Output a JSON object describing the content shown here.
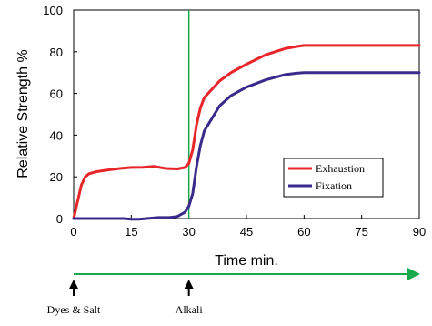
{
  "chart_data": {
    "type": "line",
    "xlabel": "Time min.",
    "ylabel": "Relative Strength %",
    "xlim": [
      0,
      90
    ],
    "ylim": [
      0,
      100
    ],
    "x_ticks": [
      0,
      15,
      30,
      45,
      60,
      75,
      90
    ],
    "y_ticks": [
      0,
      20,
      40,
      60,
      80,
      100
    ],
    "grid": false,
    "legend_position": "right-middle",
    "marker_line_x": 30,
    "series": [
      {
        "name": "Exhaustion",
        "color": "#e8262a",
        "points": [
          [
            0,
            0
          ],
          [
            1,
            8
          ],
          [
            2,
            16
          ],
          [
            3,
            20
          ],
          [
            4,
            21.5
          ],
          [
            6,
            22.5
          ],
          [
            9,
            23.3
          ],
          [
            12,
            24
          ],
          [
            15,
            24.5
          ],
          [
            18,
            24.6
          ],
          [
            21,
            25
          ],
          [
            24,
            24
          ],
          [
            27,
            23.8
          ],
          [
            29,
            24.5
          ],
          [
            30,
            26.5
          ],
          [
            31,
            33
          ],
          [
            32,
            45
          ],
          [
            33,
            53
          ],
          [
            34,
            58
          ],
          [
            36,
            62
          ],
          [
            38,
            66
          ],
          [
            41,
            70
          ],
          [
            45,
            74
          ],
          [
            50,
            78.5
          ],
          [
            55,
            81.5
          ],
          [
            58,
            82.5
          ],
          [
            60,
            83
          ],
          [
            75,
            83
          ],
          [
            90,
            83
          ]
        ]
      },
      {
        "name": "Fixation",
        "color": "#3a2a8c",
        "points": [
          [
            0,
            0
          ],
          [
            5,
            0
          ],
          [
            10,
            0
          ],
          [
            13,
            0
          ],
          [
            15,
            -0.3
          ],
          [
            17,
            -0.3
          ],
          [
            19,
            0
          ],
          [
            22,
            0.5
          ],
          [
            25,
            0.5
          ],
          [
            27,
            1
          ],
          [
            29,
            3
          ],
          [
            30,
            6
          ],
          [
            31,
            12
          ],
          [
            32,
            25
          ],
          [
            33,
            35
          ],
          [
            34,
            42
          ],
          [
            36,
            48
          ],
          [
            38,
            54
          ],
          [
            41,
            59
          ],
          [
            45,
            63
          ],
          [
            50,
            66.5
          ],
          [
            55,
            69
          ],
          [
            58,
            69.7
          ],
          [
            60,
            70
          ],
          [
            75,
            70
          ],
          [
            90,
            70
          ]
        ]
      }
    ],
    "annotations": [
      {
        "x": 0,
        "label": "Dyes & Salt"
      },
      {
        "x": 30,
        "label": "Alkali"
      }
    ]
  },
  "timeline_color": "#1aa84c",
  "vline_color": "#1aa84c"
}
